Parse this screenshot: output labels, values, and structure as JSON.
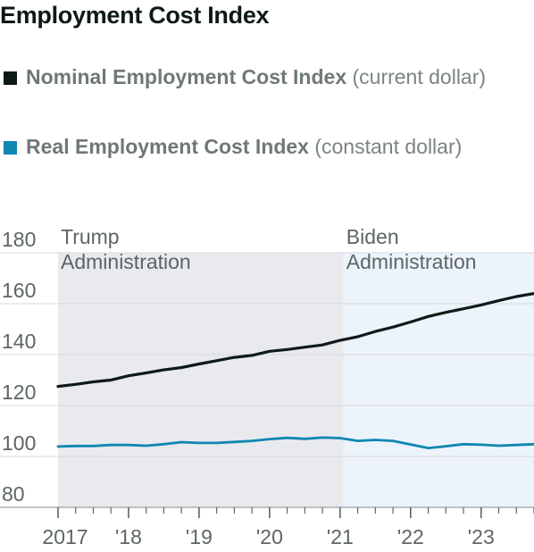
{
  "chart_data": {
    "type": "line",
    "title": "Employment Cost Index",
    "xlabel": "",
    "ylabel": "",
    "ylim": [
      80,
      180
    ],
    "yticks": [
      80,
      100,
      120,
      140,
      160,
      180
    ],
    "xlim": [
      2017.0,
      2023.75
    ],
    "xticks": [
      {
        "x": 2017,
        "label": "2017"
      },
      {
        "x": 2018,
        "label": "'18"
      },
      {
        "x": 2019,
        "label": "'19"
      },
      {
        "x": 2020,
        "label": "'20"
      },
      {
        "x": 2021,
        "label": "'21"
      },
      {
        "x": 2022,
        "label": "'22"
      },
      {
        "x": 2023,
        "label": "'23"
      }
    ],
    "grid": "horizontal",
    "legend_position": "top",
    "x": [
      2017.0,
      2017.25,
      2017.5,
      2017.75,
      2018.0,
      2018.25,
      2018.5,
      2018.75,
      2019.0,
      2019.25,
      2019.5,
      2019.75,
      2020.0,
      2020.25,
      2020.5,
      2020.75,
      2021.0,
      2021.25,
      2021.5,
      2021.75,
      2022.0,
      2022.25,
      2022.5,
      2022.75,
      2023.0,
      2023.25,
      2023.5,
      2023.75
    ],
    "series": [
      {
        "name": "Nominal Employment Cost Index",
        "note": "(current dollar)",
        "color": "#0d1a17",
        "values": [
          127.5,
          128.3,
          129.3,
          130.0,
          131.7,
          132.8,
          134.0,
          134.9,
          136.3,
          137.6,
          138.9,
          139.7,
          141.3,
          142.0,
          142.9,
          143.8,
          145.6,
          147.0,
          149.1,
          150.8,
          152.8,
          155.0,
          156.6,
          158.0,
          159.5,
          161.2,
          162.8,
          164.0
        ]
      },
      {
        "name": "Real Employment Cost Index",
        "note": "(constant dollar)",
        "color": "#0e87b1",
        "values": [
          103.9,
          104.1,
          104.1,
          104.5,
          104.5,
          104.2,
          104.8,
          105.6,
          105.3,
          105.3,
          105.7,
          106.1,
          106.8,
          107.3,
          106.9,
          107.4,
          107.2,
          106.1,
          106.5,
          106.1,
          104.7,
          103.3,
          104.0,
          104.8,
          104.6,
          104.2,
          104.5,
          104.8
        ]
      }
    ],
    "shaded_regions": [
      {
        "from": 2017.0,
        "to": 2021.05,
        "label": "Trump Administration",
        "color": "#e9eaed"
      },
      {
        "from": 2021.05,
        "to": 2023.75,
        "label": "Biden Administration",
        "color": "#edf3fb"
      }
    ]
  }
}
